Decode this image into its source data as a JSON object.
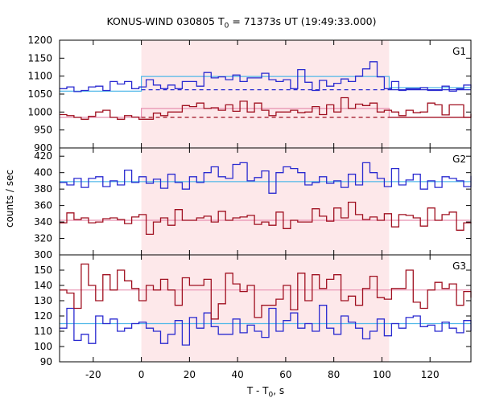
{
  "title_main": "KONUS-WIND 030805 T",
  "title_rest": " = 71373s UT (19:49:33.000)",
  "title_sub": "0",
  "ylabel": "counts / sec",
  "xlabel_main": "T - T",
  "xlabel_sub": "0",
  "xlabel_rest": ", s",
  "colors": {
    "blue": "#2a2ad0",
    "red": "#a01020",
    "fit_blue": "#50b8e8",
    "fit_red": "#e890b0",
    "shade": "#fde8ea"
  },
  "chart_data": [
    {
      "type": "line",
      "panel": "G1",
      "xlim": [
        -34,
        137
      ],
      "ylim": [
        900,
        1200
      ],
      "yticks": [
        900,
        950,
        1000,
        1050,
        1100,
        1150,
        1200
      ],
      "xticks": [
        -20,
        0,
        20,
        40,
        60,
        80,
        100,
        120
      ],
      "shaded_interval": [
        0,
        103
      ],
      "bin_width": 3,
      "x_start": -34,
      "series": [
        {
          "color": "blue",
          "values": [
            1065,
            1070,
            1057,
            1060,
            1070,
            1072,
            1060,
            1085,
            1078,
            1085,
            1065,
            1070,
            1090,
            1075,
            1065,
            1075,
            1065,
            1085,
            1085,
            1072,
            1110,
            1095,
            1098,
            1090,
            1103,
            1085,
            1095,
            1095,
            1108,
            1090,
            1085,
            1090,
            1065,
            1118,
            1083,
            1060,
            1088,
            1072,
            1080,
            1092,
            1085,
            1100,
            1120,
            1140,
            1098,
            1065,
            1085,
            1060,
            1065,
            1065,
            1068,
            1060,
            1060,
            1072,
            1058,
            1065,
            1075,
            1065
          ]
        },
        {
          "color": "red",
          "values": [
            993,
            990,
            985,
            980,
            988,
            1000,
            1005,
            985,
            980,
            990,
            986,
            980,
            980,
            997,
            990,
            1000,
            1000,
            1018,
            1015,
            1025,
            1010,
            1012,
            1005,
            1020,
            1002,
            1030,
            1000,
            1025,
            1005,
            990,
            1000,
            1000,
            1005,
            998,
            1000,
            1015,
            993,
            1020,
            1000,
            1040,
            1010,
            1022,
            1018,
            1025,
            1000,
            1005,
            1000,
            990,
            1005,
            998,
            1000,
            1025,
            1020,
            992,
            1020,
            1020,
            985,
            995
          ]
        }
      ],
      "fits": [
        {
          "color": "fit_blue",
          "x": [
            -34,
            0,
            0,
            103,
            103,
            137
          ],
          "values": [
            1058,
            1058,
            1099,
            1099,
            1068,
            1068
          ]
        },
        {
          "color": "fit_red",
          "x": [
            -34,
            0,
            0,
            103,
            103,
            137
          ],
          "values": [
            985,
            985,
            1010,
            1010,
            985,
            985
          ]
        }
      ],
      "background_levels": [
        {
          "color": "blue",
          "value": 1062,
          "dashed_range": [
            0,
            103
          ]
        },
        {
          "color": "red",
          "value": 985,
          "dashed_range": [
            0,
            103
          ]
        }
      ]
    },
    {
      "type": "line",
      "panel": "G2",
      "xlim": [
        -34,
        137
      ],
      "ylim": [
        300,
        430
      ],
      "yticks": [
        300,
        320,
        340,
        360,
        380,
        400,
        420
      ],
      "series": [
        {
          "color": "blue",
          "values": [
            388,
            385,
            393,
            382,
            393,
            395,
            383,
            390,
            385,
            403,
            388,
            395,
            387,
            392,
            381,
            398,
            388,
            380,
            395,
            388,
            400,
            407,
            395,
            393,
            410,
            412,
            390,
            394,
            402,
            375,
            400,
            407,
            405,
            400,
            385,
            388,
            395,
            387,
            390,
            382,
            398,
            385,
            412,
            400,
            393,
            383,
            405,
            385,
            391,
            398,
            380,
            390,
            382,
            395,
            393,
            390,
            383,
            396
          ]
        },
        {
          "color": "red",
          "values": [
            339,
            351,
            343,
            345,
            339,
            340,
            344,
            345,
            343,
            338,
            346,
            349,
            325,
            340,
            345,
            336,
            355,
            342,
            342,
            345,
            347,
            340,
            353,
            342,
            345,
            346,
            348,
            337,
            340,
            336,
            352,
            332,
            342,
            340,
            340,
            356,
            347,
            341,
            357,
            345,
            364,
            349,
            343,
            346,
            342,
            350,
            334,
            349,
            348,
            345,
            335,
            357,
            342,
            349,
            352,
            330,
            339,
            340
          ]
        }
      ],
      "fits": [
        {
          "color": "fit_blue",
          "x": [
            -34,
            137
          ],
          "values": [
            389,
            389
          ]
        },
        {
          "color": "fit_red",
          "x": [
            -34,
            137
          ],
          "values": [
            342,
            342
          ]
        }
      ]
    },
    {
      "type": "line",
      "panel": "G3",
      "xlim": [
        -34,
        137
      ],
      "ylim": [
        90,
        160
      ],
      "yticks": [
        90,
        100,
        110,
        120,
        130,
        140,
        150
      ],
      "series": [
        {
          "color": "blue",
          "values": [
            112,
            125,
            104,
            108,
            102,
            120,
            115,
            118,
            110,
            112,
            115,
            116,
            112,
            110,
            102,
            108,
            117,
            101,
            119,
            112,
            122,
            113,
            108,
            108,
            118,
            109,
            114,
            110,
            106,
            125,
            110,
            117,
            122,
            112,
            115,
            110,
            127,
            112,
            108,
            120,
            116,
            112,
            105,
            110,
            118,
            107,
            115,
            112,
            119,
            120,
            113,
            114,
            110,
            116,
            112,
            109,
            117,
            110
          ]
        },
        {
          "color": "red",
          "values": [
            137,
            135,
            125,
            154,
            140,
            130,
            147,
            137,
            150,
            143,
            138,
            130,
            140,
            137,
            144,
            137,
            127,
            145,
            140,
            140,
            144,
            118,
            128,
            148,
            141,
            136,
            140,
            119,
            127,
            127,
            131,
            140,
            124,
            148,
            130,
            147,
            138,
            144,
            147,
            130,
            133,
            127,
            138,
            146,
            132,
            131,
            138,
            138,
            150,
            129,
            125,
            137,
            142,
            138,
            141,
            127,
            136,
            132
          ]
        }
      ],
      "fits": [
        {
          "color": "fit_red",
          "x": [
            -34,
            137
          ],
          "values": [
            137,
            137
          ]
        },
        {
          "color": "fit_blue",
          "x": [
            -34,
            137
          ],
          "values": [
            115,
            115
          ]
        }
      ]
    }
  ]
}
